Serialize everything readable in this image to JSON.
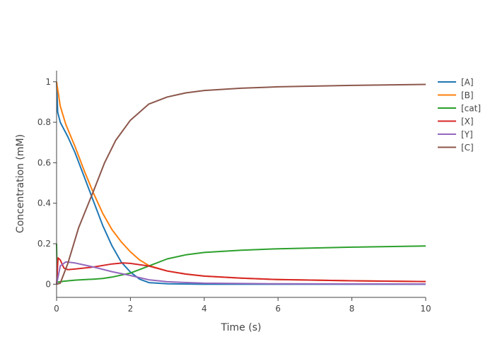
{
  "chart_data": {
    "type": "line",
    "title": "",
    "xlabel": "Time (s)",
    "ylabel": "Concentration (mM)",
    "xlim": [
      0,
      10
    ],
    "ylim": [
      -0.065,
      1.055
    ],
    "xticks": [
      0,
      2,
      4,
      6,
      8,
      10
    ],
    "yticks": [
      0,
      0.2,
      0.4,
      0.6,
      0.8,
      1
    ],
    "ytick_labels": [
      "0",
      "0.2",
      "0.4",
      "0.6",
      "0.8",
      "1"
    ],
    "xtick_labels": [
      "0",
      "2",
      "4",
      "6",
      "8",
      "10"
    ],
    "grid": false,
    "legend_position": "top-right",
    "series": [
      {
        "name": "[A]",
        "color": "#1f77b4",
        "points": [
          [
            0,
            1
          ],
          [
            0.03,
            0.85
          ],
          [
            0.1,
            0.8
          ],
          [
            0.3,
            0.73
          ],
          [
            0.5,
            0.65
          ],
          [
            0.75,
            0.53
          ],
          [
            1,
            0.41
          ],
          [
            1.25,
            0.29
          ],
          [
            1.5,
            0.19
          ],
          [
            1.75,
            0.11
          ],
          [
            2,
            0.06
          ],
          [
            2.25,
            0.025
          ],
          [
            2.5,
            0.008
          ],
          [
            3,
            0.002
          ],
          [
            4,
            0
          ],
          [
            10,
            0
          ]
        ]
      },
      {
        "name": "[B]",
        "color": "#ff7f0e",
        "points": [
          [
            0,
            1
          ],
          [
            0.1,
            0.88
          ],
          [
            0.25,
            0.79
          ],
          [
            0.5,
            0.68
          ],
          [
            0.75,
            0.56
          ],
          [
            1,
            0.45
          ],
          [
            1.25,
            0.35
          ],
          [
            1.5,
            0.27
          ],
          [
            1.75,
            0.21
          ],
          [
            2,
            0.16
          ],
          [
            2.25,
            0.12
          ],
          [
            2.5,
            0.092
          ],
          [
            3,
            0.065
          ],
          [
            3.5,
            0.05
          ],
          [
            4,
            0.04
          ],
          [
            5,
            0.03
          ],
          [
            6,
            0.023
          ],
          [
            8,
            0.017
          ],
          [
            10,
            0.013
          ]
        ]
      },
      {
        "name": "[cat]",
        "color": "#2ca02c",
        "points": [
          [
            0,
            0.2
          ],
          [
            0.02,
            0.01
          ],
          [
            0.2,
            0.015
          ],
          [
            0.5,
            0.02
          ],
          [
            1,
            0.025
          ],
          [
            1.25,
            0.028
          ],
          [
            1.5,
            0.035
          ],
          [
            2,
            0.055
          ],
          [
            2.5,
            0.09
          ],
          [
            3,
            0.125
          ],
          [
            3.5,
            0.145
          ],
          [
            4,
            0.157
          ],
          [
            5,
            0.168
          ],
          [
            6,
            0.175
          ],
          [
            8,
            0.183
          ],
          [
            10,
            0.189
          ]
        ]
      },
      {
        "name": "[X]",
        "color": "#d62728",
        "points": [
          [
            0,
            0
          ],
          [
            0.04,
            0.13
          ],
          [
            0.1,
            0.12
          ],
          [
            0.2,
            0.08
          ],
          [
            0.3,
            0.072
          ],
          [
            0.5,
            0.075
          ],
          [
            1,
            0.085
          ],
          [
            1.5,
            0.1
          ],
          [
            1.8,
            0.105
          ],
          [
            2,
            0.103
          ],
          [
            2.5,
            0.09
          ],
          [
            3,
            0.065
          ],
          [
            3.5,
            0.05
          ],
          [
            4,
            0.04
          ],
          [
            5,
            0.03
          ],
          [
            6,
            0.023
          ],
          [
            8,
            0.017
          ],
          [
            10,
            0.013
          ]
        ]
      },
      {
        "name": "[Y]",
        "color": "#9467bd",
        "points": [
          [
            0,
            0
          ],
          [
            0.1,
            0.09
          ],
          [
            0.25,
            0.11
          ],
          [
            0.5,
            0.105
          ],
          [
            1,
            0.085
          ],
          [
            1.5,
            0.062
          ],
          [
            2,
            0.043
          ],
          [
            2.5,
            0.022
          ],
          [
            3,
            0.012
          ],
          [
            4,
            0.005
          ],
          [
            6,
            0.002
          ],
          [
            10,
            0.001
          ]
        ]
      },
      {
        "name": "[C]",
        "color": "#8c564b",
        "points": [
          [
            0,
            0
          ],
          [
            0.1,
            0.005
          ],
          [
            0.3,
            0.1
          ],
          [
            0.6,
            0.28
          ],
          [
            1,
            0.46
          ],
          [
            1.3,
            0.6
          ],
          [
            1.6,
            0.71
          ],
          [
            2,
            0.81
          ],
          [
            2.5,
            0.89
          ],
          [
            3,
            0.925
          ],
          [
            3.5,
            0.945
          ],
          [
            4,
            0.957
          ],
          [
            5,
            0.968
          ],
          [
            6,
            0.975
          ],
          [
            8,
            0.982
          ],
          [
            10,
            0.987
          ]
        ]
      }
    ]
  }
}
